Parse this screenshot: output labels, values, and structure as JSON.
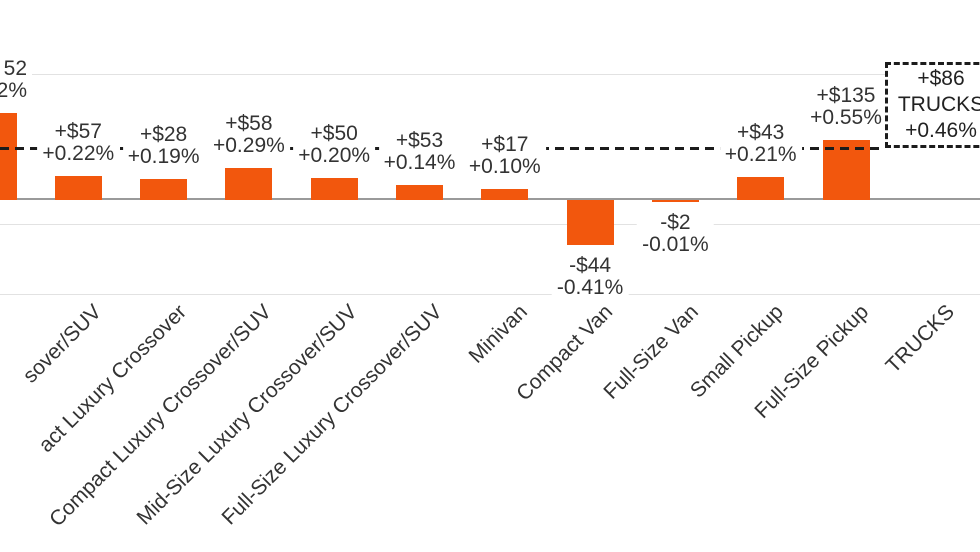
{
  "colors": {
    "bar": "#F2570D",
    "grid": "#E2E2E2",
    "axis": "#9A9A9A",
    "dash_line": "#1C1C1C",
    "label_text": "#333333"
  },
  "chart_data": {
    "type": "bar",
    "title": "",
    "value_encoding": "bar heights encode percent change; labels show dollar change and percent change",
    "grid": "horizontal-light, no visible y-axis tick labels (cropped)",
    "legend_position": "none",
    "bars": [
      {
        "category": "",
        "dollar_label": "52",
        "pct_label": "2%",
        "pct": 0.8,
        "clipped_left": true
      },
      {
        "category": "sover/SUV",
        "dollar_label": "+$57",
        "pct_label": "+0.22%",
        "pct": 0.22
      },
      {
        "category": "act Luxury Crossover",
        "dollar_label": "+$28",
        "pct_label": "+0.19%",
        "pct": 0.19
      },
      {
        "category": "Compact Luxury Crossover/SUV",
        "dollar_label": "+$58",
        "pct_label": "+0.29%",
        "pct": 0.29
      },
      {
        "category": "Mid-Size Luxury Crossover/SUV",
        "dollar_label": "+$50",
        "pct_label": "+0.20%",
        "pct": 0.2
      },
      {
        "category": "Full-Size Luxury Crossover/SUV",
        "dollar_label": "+$53",
        "pct_label": "+0.14%",
        "pct": 0.14
      },
      {
        "category": "Minivan",
        "dollar_label": "+$17",
        "pct_label": "+0.10%",
        "pct": 0.1
      },
      {
        "category": "Compact Van",
        "dollar_label": "-$44",
        "pct_label": "-0.41%",
        "pct": -0.41
      },
      {
        "category": "Full-Size Van",
        "dollar_label": "-$2",
        "pct_label": "-0.01%",
        "pct": -0.01
      },
      {
        "category": "Small Pickup",
        "dollar_label": "+$43",
        "pct_label": "+0.21%",
        "pct": 0.21
      },
      {
        "category": "Full-Size Pickup",
        "dollar_label": "+$135",
        "pct_label": "+0.55%",
        "pct": 0.55
      },
      {
        "category": "TRUCKS",
        "dollar_label": "",
        "pct_label": "",
        "pct": null,
        "no_bar": true
      }
    ],
    "reference_line": {
      "style": "dashed",
      "pct": 0.46
    },
    "reference_box": {
      "line1": "+$86",
      "line2": "TRUCKS",
      "line3": "+0.46%"
    }
  }
}
